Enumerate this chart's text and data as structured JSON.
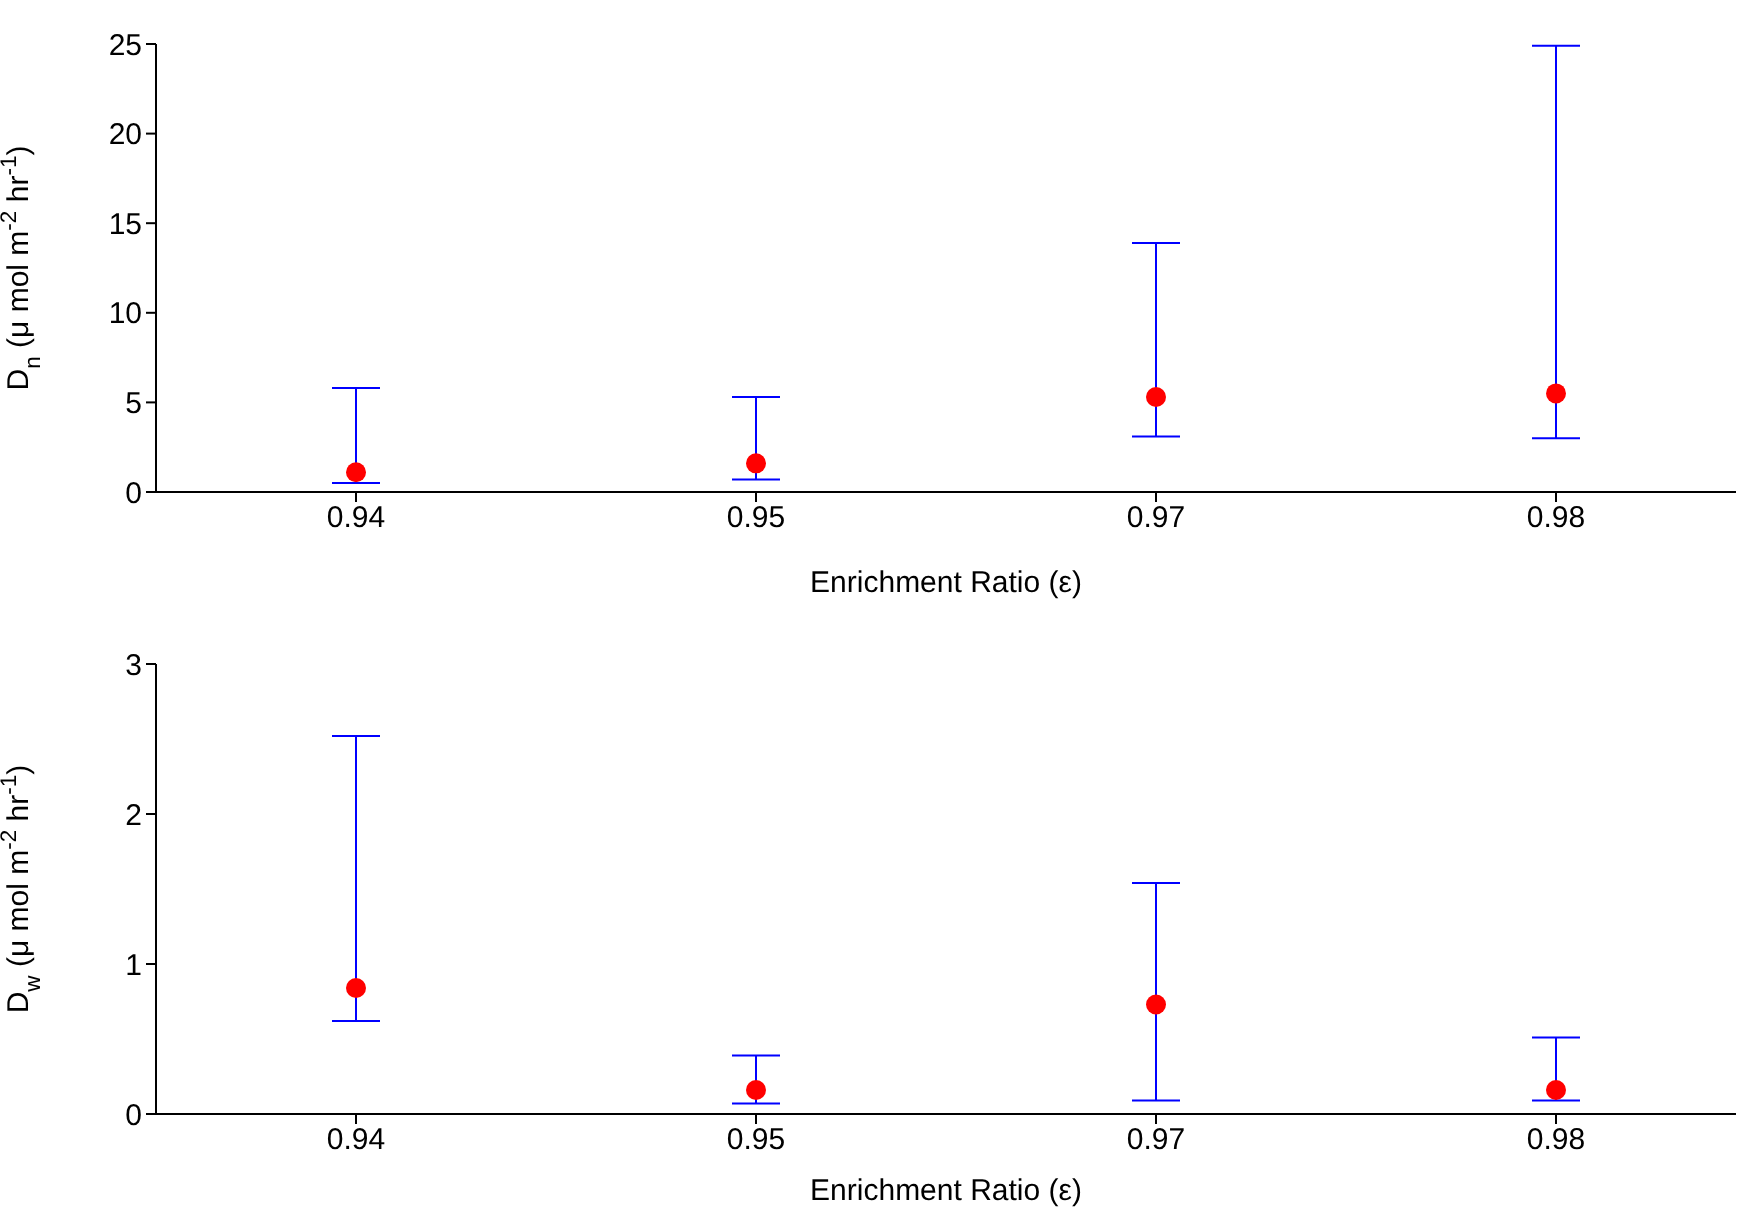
{
  "chart_data": [
    {
      "type": "scatter",
      "categories": [
        "0.94",
        "0.95",
        "0.97",
        "0.98"
      ],
      "xlabel": "Enrichment Ratio (ε)",
      "ylabel": "D$_{n}$ (μ mol m$^{-2}$ hr$^{-1}$)",
      "ylim": [
        0,
        25
      ],
      "yticks": [
        0,
        5,
        10,
        15,
        20,
        25
      ],
      "grid": false,
      "legend": false,
      "marker": "circle",
      "series": [
        {
          "color": "#ff0000",
          "values": [
            1.1,
            1.6,
            5.3,
            5.5
          ],
          "errors": [
            [
              0.5,
              5.8
            ],
            [
              0.7,
              5.3
            ],
            [
              3.1,
              13.9
            ],
            [
              3.0,
              24.9
            ]
          ]
        }
      ]
    },
    {
      "type": "scatter",
      "categories": [
        "0.94",
        "0.95",
        "0.97",
        "0.98"
      ],
      "xlabel": "Enrichment Ratio (ε)",
      "ylabel": "D$_{w}$ (μ mol m$^{-2}$ hr$^{-1}$)",
      "ylim": [
        0,
        3
      ],
      "yticks": [
        0,
        1,
        2,
        3
      ],
      "grid": false,
      "legend": false,
      "marker": "circle",
      "series": [
        {
          "color": "#ff0000",
          "values": [
            0.84,
            0.16,
            0.73,
            0.16
          ],
          "errors": [
            [
              0.62,
              2.52
            ],
            [
              0.07,
              0.39
            ],
            [
              0.09,
              1.54
            ],
            [
              0.09,
              0.51
            ]
          ]
        }
      ]
    }
  ]
}
